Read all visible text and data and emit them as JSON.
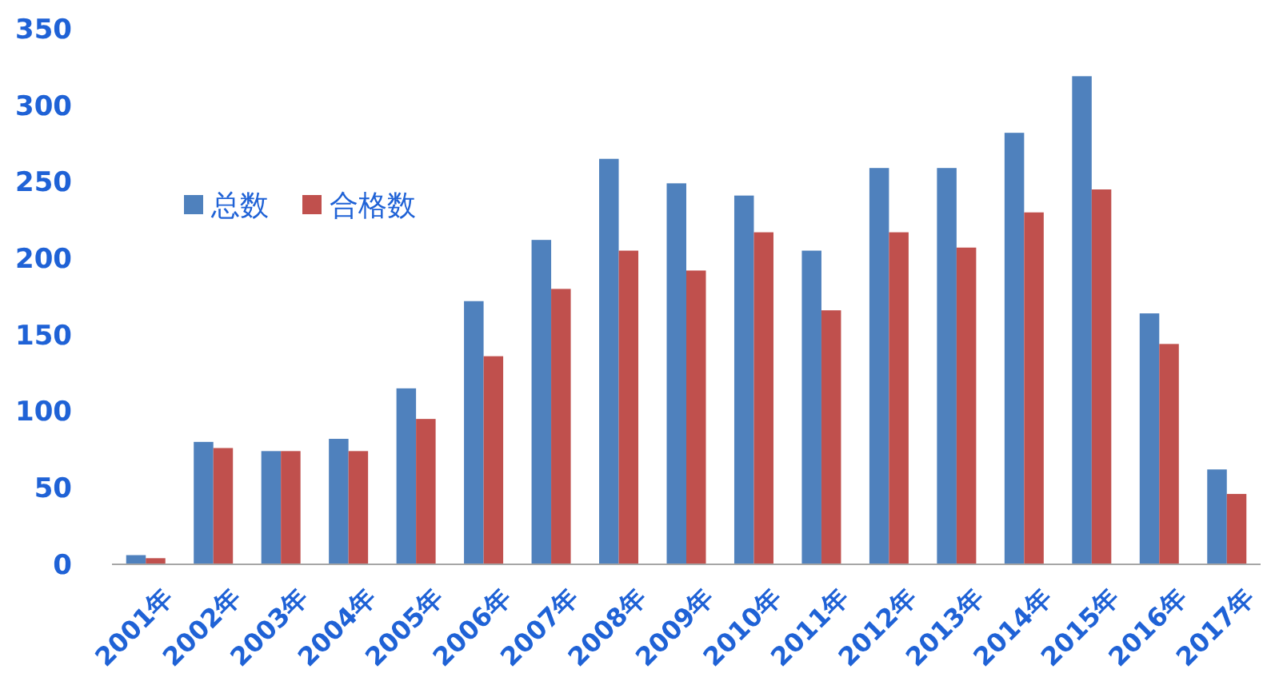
{
  "chart_data": {
    "type": "bar",
    "categories": [
      "2001年",
      "2002年",
      "2003年",
      "2004年",
      "2005年",
      "2006年",
      "2007年",
      "2008年",
      "2009年",
      "2010年",
      "2011年",
      "2012年",
      "2013年",
      "2014年",
      "2015年",
      "2016年",
      "2017年"
    ],
    "series": [
      {
        "name": "总数",
        "color": "#4f81bd",
        "values": [
          6,
          80,
          74,
          82,
          115,
          172,
          212,
          265,
          249,
          241,
          205,
          259,
          259,
          282,
          319,
          164,
          62
        ]
      },
      {
        "name": "合格数",
        "color": "#c0504d",
        "values": [
          4,
          76,
          74,
          74,
          95,
          136,
          180,
          205,
          192,
          217,
          166,
          217,
          207,
          230,
          245,
          144,
          46
        ]
      }
    ],
    "ylim": [
      0,
      350
    ],
    "yticks": [
      0,
      50,
      100,
      150,
      200,
      250,
      300,
      350
    ],
    "grid": false,
    "legend": "top left"
  }
}
